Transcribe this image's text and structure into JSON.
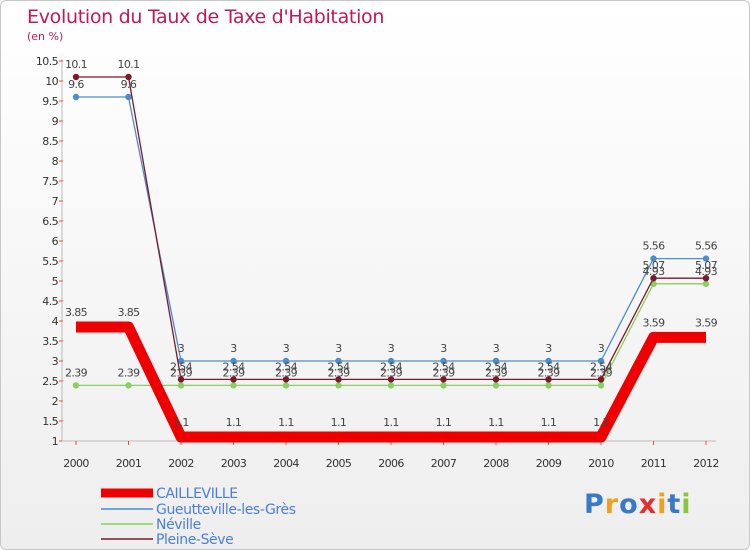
{
  "chart_data": {
    "type": "line",
    "title": "Evolution du Taux de Taxe d'Habitation",
    "subtitle": "(en %)",
    "x": [
      "2000",
      "2001",
      "2002",
      "2003",
      "2004",
      "2005",
      "2006",
      "2007",
      "2008",
      "2009",
      "2010",
      "2011",
      "2012"
    ],
    "y_ticks": [
      "1",
      "1.5",
      "2",
      "2.5",
      "3",
      "3.5",
      "4",
      "4.5",
      "5",
      "5.5",
      "6",
      "6.5",
      "7",
      "7.5",
      "8",
      "8.5",
      "9",
      "9.5",
      "10",
      "10.5"
    ],
    "ylim": [
      1,
      10.5
    ],
    "grid": false,
    "legend_position": "bottom-left",
    "series": [
      {
        "name": "CAILLEVILLE",
        "color": "#ee0000",
        "values": [
          3.85,
          3.85,
          1.1,
          1.1,
          1.1,
          1.1,
          1.1,
          1.1,
          1.1,
          1.1,
          1.1,
          3.59,
          3.59
        ],
        "labels": [
          "3.85",
          "3.85",
          "1.1",
          "1.1",
          "1.1",
          "1.1",
          "1.1",
          "1.1",
          "1.1",
          "1.1",
          "1.1",
          "3.59",
          "3.59"
        ]
      },
      {
        "name": "Gueutteville-les-Grès",
        "color": "#4a8ecb",
        "values": [
          9.6,
          9.6,
          3,
          3,
          3,
          3,
          3,
          3,
          3,
          3,
          3,
          5.56,
          5.56
        ],
        "labels": [
          "9.6",
          "9.6",
          "3",
          "3",
          "3",
          "3",
          "3",
          "3",
          "3",
          "3",
          "3",
          "5.56",
          "5.56"
        ]
      },
      {
        "name": "Néville",
        "color": "#88d060",
        "values": [
          2.39,
          2.39,
          2.39,
          2.39,
          2.39,
          2.39,
          2.39,
          2.39,
          2.39,
          2.39,
          2.39,
          4.93,
          4.93
        ],
        "labels": [
          "2.39",
          "2.39",
          "2.39",
          "2.39",
          "2.39",
          "2.39",
          "2.39",
          "2.39",
          "2.39",
          "2.39",
          "2.39",
          "4.93",
          "4.93"
        ]
      },
      {
        "name": "Pleine-Sève",
        "color": "#7a1a2a",
        "values": [
          10.1,
          10.1,
          2.54,
          2.54,
          2.54,
          2.54,
          2.54,
          2.54,
          2.54,
          2.54,
          2.54,
          5.07,
          5.07
        ],
        "labels": [
          "10.1",
          "10.1",
          "2.54",
          "2.54",
          "2.54",
          "2.54",
          "2.54",
          "2.54",
          "2.54",
          "2.54",
          "2.54",
          "5.07",
          "5.07"
        ]
      }
    ]
  },
  "logo": {
    "letters": [
      "P",
      "r",
      "o",
      "x",
      "i",
      "t",
      "i"
    ],
    "colors": [
      "#3a78c8",
      "#f0a020",
      "#3a78c8",
      "#e03030",
      "#f0a020",
      "#3a78c8",
      "#8cc43c"
    ]
  }
}
